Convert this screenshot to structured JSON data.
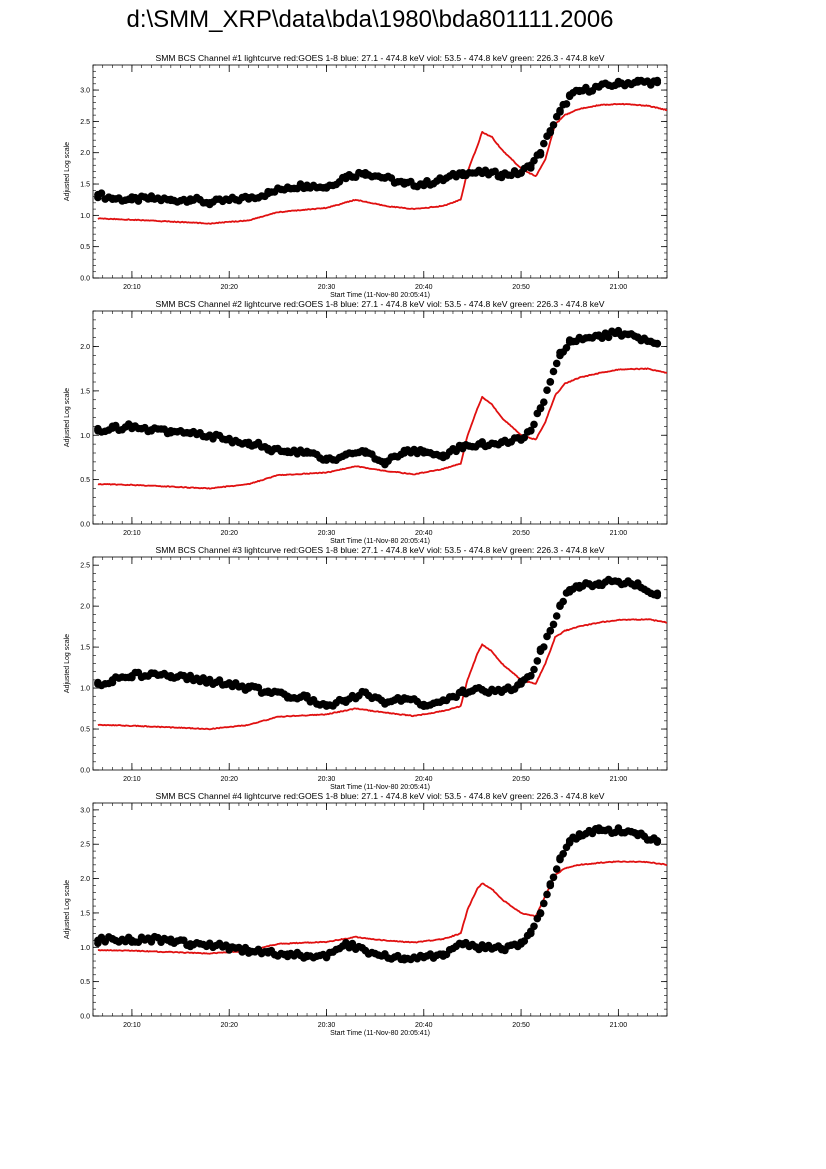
{
  "page_title": "d:\\SMM_XRP\\data\\bda\\1980\\bda801111.2006",
  "colors": {
    "goes": "#e01010",
    "bcs": "#000000",
    "axis": "#000000"
  },
  "chart_data": [
    {
      "type": "scatter",
      "title": "SMM BCS Channel #1 lightcurve  red:GOES 1-8  blue: 27.1 - 474.8 keV  viol: 53.5 - 474.8 keV  green: 226.3 - 474.8 keV",
      "xlabel": "Start Time (11-Nov-80 20:05:41)",
      "ylabel": "Adjusted Log scale",
      "xlim": [
        6,
        65
      ],
      "ylim": [
        0,
        3.4
      ],
      "yticks": [
        0.0,
        0.5,
        1.0,
        1.5,
        2.0,
        2.5,
        3.0
      ],
      "ytick_labels": [
        "0.0",
        "0.5",
        "1.0",
        "1.5",
        "2.0",
        "2.5",
        "3.0"
      ],
      "xticks": [
        10,
        20,
        30,
        40,
        50,
        60
      ],
      "xtick_labels": [
        "20:10",
        "20:20",
        "20:30",
        "20:40",
        "20:50",
        "21:00"
      ],
      "series": [
        {
          "name": "GOES 1-8",
          "style": "line",
          "x": [
            6.5,
            10,
            14,
            18,
            22,
            25,
            30,
            33,
            36,
            39,
            42,
            43.8,
            44.5,
            45.5,
            46,
            47,
            48,
            50,
            51.5,
            52.5,
            53.5,
            54.5,
            56,
            58,
            60,
            63,
            65
          ],
          "y": [
            0.95,
            0.93,
            0.9,
            0.87,
            0.92,
            1.05,
            1.12,
            1.25,
            1.15,
            1.1,
            1.15,
            1.25,
            1.7,
            2.1,
            2.33,
            2.25,
            2.05,
            1.75,
            1.62,
            1.9,
            2.45,
            2.6,
            2.7,
            2.76,
            2.78,
            2.75,
            2.68
          ]
        },
        {
          "name": "BCS channel #1",
          "style": "markers",
          "x": [
            6.5,
            8,
            10,
            12,
            14,
            16,
            18,
            20,
            22,
            24,
            26,
            28,
            30,
            32,
            34,
            36,
            38,
            40,
            42,
            44,
            46,
            48,
            50,
            51,
            52,
            53,
            54,
            55,
            56,
            58,
            60,
            62,
            64
          ],
          "y": [
            1.33,
            1.27,
            1.25,
            1.27,
            1.24,
            1.26,
            1.2,
            1.24,
            1.28,
            1.35,
            1.45,
            1.48,
            1.45,
            1.62,
            1.68,
            1.6,
            1.5,
            1.5,
            1.57,
            1.68,
            1.68,
            1.65,
            1.68,
            1.8,
            2.0,
            2.35,
            2.65,
            2.9,
            2.98,
            3.05,
            3.1,
            3.13,
            3.12
          ]
        }
      ]
    },
    {
      "type": "scatter",
      "title": "SMM BCS Channel #2 lightcurve  red:GOES 1-8  blue: 27.1 - 474.8 keV  viol: 53.5 - 474.8 keV  green: 226.3 - 474.8 keV",
      "xlabel": "Start Time (11-Nov-80 20:05:41)",
      "ylabel": "Adjusted Log scale",
      "xlim": [
        6,
        65
      ],
      "ylim": [
        0,
        2.4
      ],
      "yticks": [
        0.0,
        0.5,
        1.0,
        1.5,
        2.0
      ],
      "ytick_labels": [
        "0.0",
        "0.5",
        "1.0",
        "1.5",
        "2.0"
      ],
      "xticks": [
        10,
        20,
        30,
        40,
        50,
        60
      ],
      "xtick_labels": [
        "20:10",
        "20:20",
        "20:30",
        "20:40",
        "20:50",
        "21:00"
      ],
      "series": [
        {
          "name": "GOES 1-8",
          "style": "line",
          "x": [
            6.5,
            10,
            14,
            18,
            22,
            25,
            30,
            33,
            36,
            39,
            42,
            43.8,
            44.5,
            45.5,
            46,
            47,
            48,
            50,
            51.5,
            52.5,
            53.5,
            54.5,
            56,
            58,
            60,
            63,
            65
          ],
          "y": [
            0.45,
            0.44,
            0.42,
            0.4,
            0.45,
            0.55,
            0.58,
            0.65,
            0.6,
            0.56,
            0.62,
            0.68,
            1.0,
            1.3,
            1.43,
            1.35,
            1.2,
            1.0,
            0.95,
            1.15,
            1.45,
            1.58,
            1.65,
            1.7,
            1.74,
            1.75,
            1.7
          ]
        },
        {
          "name": "BCS channel #2",
          "style": "markers",
          "x": [
            6.5,
            8,
            10,
            12,
            14,
            16,
            18,
            20,
            22,
            24,
            26,
            28,
            30,
            32,
            34,
            36,
            38,
            40,
            42,
            44,
            46,
            48,
            50,
            51,
            52,
            53,
            54,
            55,
            56,
            58,
            60,
            62,
            64
          ],
          "y": [
            1.05,
            1.08,
            1.1,
            1.05,
            1.05,
            1.02,
            1.0,
            0.95,
            0.92,
            0.85,
            0.82,
            0.8,
            0.72,
            0.78,
            0.82,
            0.7,
            0.8,
            0.82,
            0.75,
            0.88,
            0.9,
            0.92,
            0.95,
            1.05,
            1.3,
            1.6,
            1.9,
            2.05,
            2.1,
            2.12,
            2.15,
            2.1,
            2.03
          ]
        }
      ]
    },
    {
      "type": "scatter",
      "title": "SMM BCS Channel #3 lightcurve  red:GOES 1-8  blue: 27.1 - 474.8 keV  viol: 53.5 - 474.8 keV  green: 226.3 - 474.8 keV",
      "xlabel": "Start Time (11-Nov-80 20:05:41)",
      "ylabel": "Adjusted Log scale",
      "xlim": [
        6,
        65
      ],
      "ylim": [
        0,
        2.6
      ],
      "yticks": [
        0.0,
        0.5,
        1.0,
        1.5,
        2.0,
        2.5
      ],
      "ytick_labels": [
        "0.0",
        "0.5",
        "1.0",
        "1.5",
        "2.0",
        "2.5"
      ],
      "xticks": [
        10,
        20,
        30,
        40,
        50,
        60
      ],
      "xtick_labels": [
        "20:10",
        "20:20",
        "20:30",
        "20:40",
        "20:50",
        "21:00"
      ],
      "series": [
        {
          "name": "GOES 1-8",
          "style": "line",
          "x": [
            6.5,
            10,
            14,
            18,
            22,
            25,
            30,
            33,
            36,
            39,
            42,
            43.8,
            44.5,
            45.5,
            46,
            47,
            48,
            50,
            51.5,
            52.5,
            53.5,
            54.5,
            56,
            58,
            60,
            63,
            65
          ],
          "y": [
            0.55,
            0.54,
            0.52,
            0.5,
            0.55,
            0.65,
            0.68,
            0.75,
            0.7,
            0.66,
            0.72,
            0.78,
            1.1,
            1.42,
            1.53,
            1.45,
            1.3,
            1.1,
            1.05,
            1.3,
            1.62,
            1.7,
            1.75,
            1.8,
            1.83,
            1.84,
            1.8
          ]
        },
        {
          "name": "BCS channel #3",
          "style": "markers",
          "x": [
            6.5,
            8,
            10,
            12,
            14,
            16,
            18,
            20,
            22,
            24,
            26,
            28,
            30,
            32,
            34,
            36,
            38,
            40,
            42,
            44,
            46,
            48,
            50,
            51,
            52,
            53,
            54,
            55,
            56,
            58,
            60,
            62,
            64
          ],
          "y": [
            1.05,
            1.1,
            1.15,
            1.18,
            1.15,
            1.12,
            1.08,
            1.05,
            1.0,
            0.95,
            0.9,
            0.88,
            0.78,
            0.85,
            0.95,
            0.82,
            0.88,
            0.8,
            0.85,
            0.95,
            0.98,
            0.95,
            1.05,
            1.15,
            1.45,
            1.7,
            2.0,
            2.2,
            2.25,
            2.28,
            2.3,
            2.25,
            2.13
          ]
        }
      ]
    },
    {
      "type": "scatter",
      "title": "SMM BCS Channel #4 lightcurve  red:GOES 1-8  blue: 27.1 - 474.8 keV  viol: 53.5 - 474.8 keV  green: 226.3 - 474.8 keV",
      "xlabel": "Start Time (11-Nov-80 20:05:41)",
      "ylabel": "Adjusted Log scale",
      "xlim": [
        6,
        65
      ],
      "ylim": [
        0,
        3.1
      ],
      "yticks": [
        0.0,
        0.5,
        1.0,
        1.5,
        2.0,
        2.5,
        3.0
      ],
      "ytick_labels": [
        "0.0",
        "0.5",
        "1.0",
        "1.5",
        "2.0",
        "2.5",
        "3.0"
      ],
      "xticks": [
        10,
        20,
        30,
        40,
        50,
        60
      ],
      "xtick_labels": [
        "20:10",
        "20:20",
        "20:30",
        "20:40",
        "20:50",
        "21:00"
      ],
      "series": [
        {
          "name": "GOES 1-8",
          "style": "line",
          "x": [
            6.5,
            10,
            14,
            18,
            22,
            25,
            30,
            33,
            36,
            39,
            42,
            43.8,
            44.5,
            45.5,
            46,
            47,
            48,
            50,
            51.5,
            52.5,
            53.5,
            54.5,
            56,
            58,
            60,
            63,
            65
          ],
          "y": [
            0.96,
            0.95,
            0.93,
            0.91,
            0.95,
            1.05,
            1.08,
            1.15,
            1.1,
            1.07,
            1.12,
            1.2,
            1.55,
            1.85,
            1.93,
            1.85,
            1.7,
            1.5,
            1.45,
            1.75,
            2.05,
            2.15,
            2.2,
            2.23,
            2.25,
            2.24,
            2.2
          ]
        },
        {
          "name": "BCS channel #4",
          "style": "markers",
          "x": [
            6.5,
            8,
            10,
            12,
            14,
            16,
            18,
            20,
            22,
            24,
            26,
            28,
            30,
            32,
            34,
            36,
            38,
            40,
            42,
            44,
            46,
            48,
            50,
            51,
            52,
            53,
            54,
            55,
            56,
            58,
            60,
            62,
            64
          ],
          "y": [
            1.1,
            1.12,
            1.1,
            1.12,
            1.08,
            1.05,
            1.05,
            1.0,
            0.95,
            0.92,
            0.9,
            0.88,
            0.85,
            1.05,
            0.95,
            0.88,
            0.82,
            0.85,
            0.9,
            1.05,
            1.0,
            0.98,
            1.05,
            1.2,
            1.5,
            1.9,
            2.3,
            2.55,
            2.65,
            2.7,
            2.7,
            2.65,
            2.55
          ]
        }
      ]
    }
  ]
}
